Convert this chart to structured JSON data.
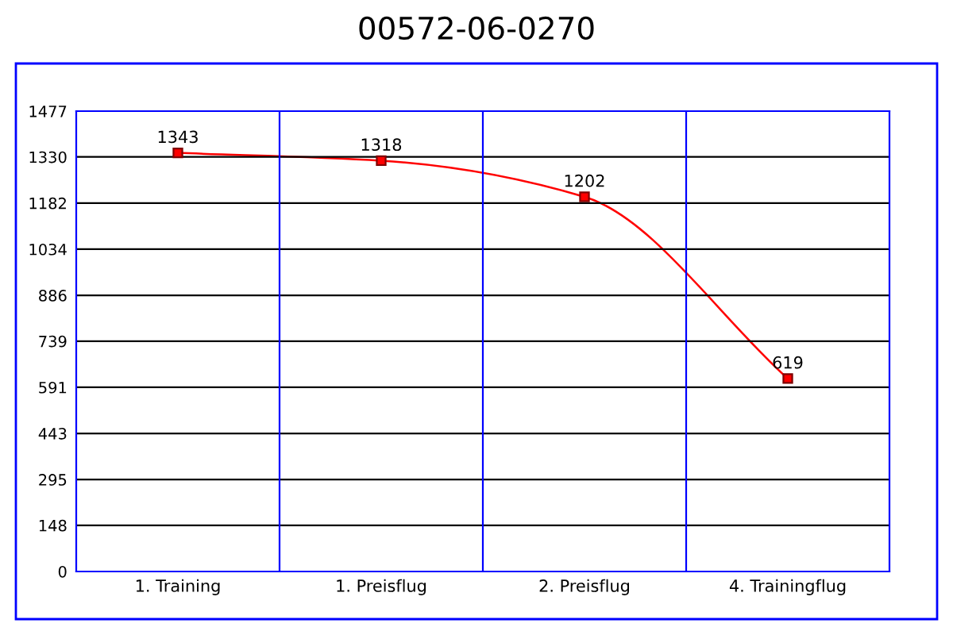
{
  "chart_data": {
    "type": "line",
    "title": "00572-06-0270",
    "categories": [
      "1. Training",
      "1. Preisflug",
      "2. Preisflug",
      "4. Trainingflug"
    ],
    "series": [
      {
        "color": "#ff0000",
        "values": [
          1343,
          1318,
          1202,
          619
        ]
      }
    ],
    "ylim": [
      0,
      1477
    ],
    "yticks": [
      0,
      148,
      295,
      443,
      591,
      739,
      886,
      1034,
      1182,
      1330,
      1477
    ],
    "grid": true,
    "marker": "square",
    "data_labels": true,
    "legend": false
  }
}
